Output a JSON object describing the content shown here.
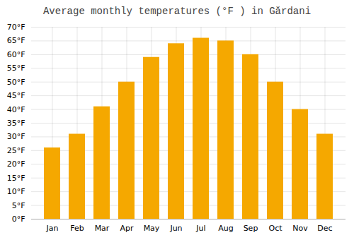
{
  "chart_data": {
    "type": "bar",
    "title": "Average monthly temperatures (°F ) in Gărdani",
    "categories": [
      "Jan",
      "Feb",
      "Mar",
      "Apr",
      "May",
      "Jun",
      "Jul",
      "Aug",
      "Sep",
      "Oct",
      "Nov",
      "Dec"
    ],
    "values": [
      26,
      31,
      41,
      50,
      59,
      64,
      66,
      65,
      60,
      50,
      40,
      31
    ],
    "color": "#F5A800",
    "ylim": [
      0,
      70
    ],
    "yticks": [
      {
        "value": 0,
        "label": "0°F"
      },
      {
        "value": 5,
        "label": "5°F"
      },
      {
        "value": 10,
        "label": "10°F"
      },
      {
        "value": 15,
        "label": "15°F"
      },
      {
        "value": 20,
        "label": "20°F"
      },
      {
        "value": 25,
        "label": "25°F"
      },
      {
        "value": 30,
        "label": "30°F"
      },
      {
        "value": 35,
        "label": "35°F"
      },
      {
        "value": 40,
        "label": "40°F"
      },
      {
        "value": 45,
        "label": "45°F"
      },
      {
        "value": 50,
        "label": "50°F"
      },
      {
        "value": 55,
        "label": "55°F"
      },
      {
        "value": 60,
        "label": "60°F"
      },
      {
        "value": 65,
        "label": "65°F"
      },
      {
        "value": 70,
        "label": "70°F"
      }
    ],
    "grid": true
  }
}
